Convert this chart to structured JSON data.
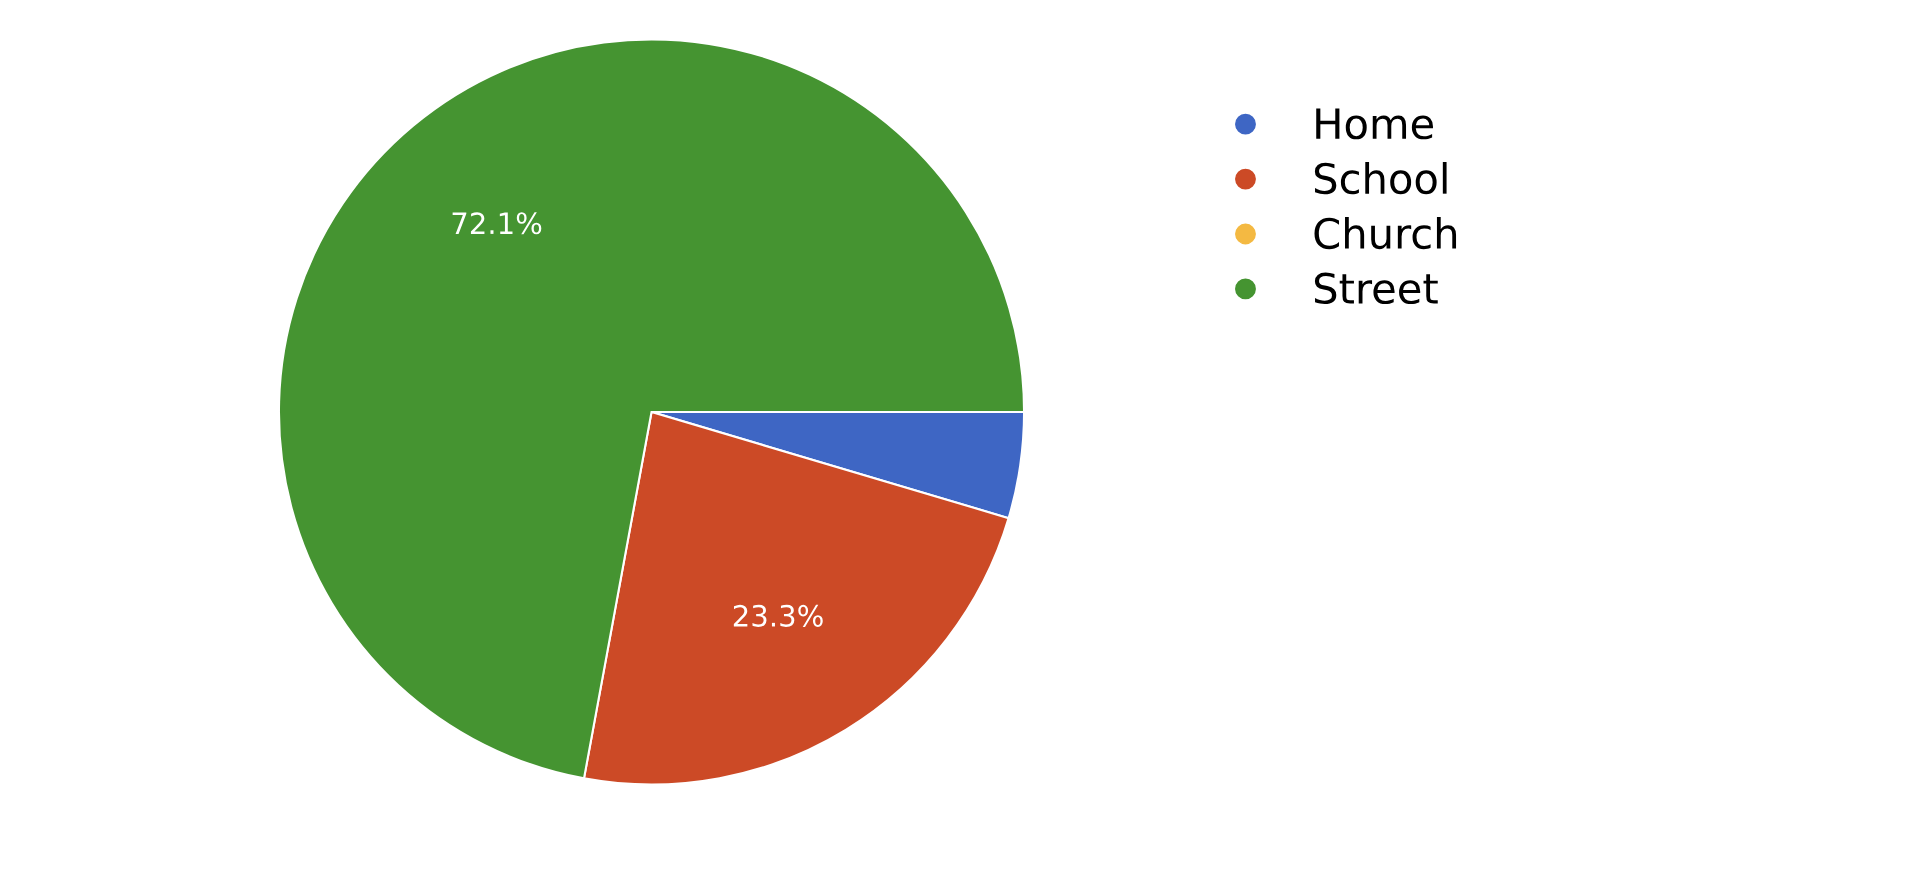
{
  "chart_data": {
    "type": "pie",
    "categories": [
      "Home",
      "School",
      "Church",
      "Street"
    ],
    "values": [
      4.6,
      23.3,
      0,
      72.1
    ],
    "colors": [
      "#3e66c4",
      "#cc4a26",
      "#f4b942",
      "#459431"
    ],
    "value_labels": [
      null,
      "23.3%",
      null,
      "72.1%"
    ],
    "legend": "right"
  }
}
